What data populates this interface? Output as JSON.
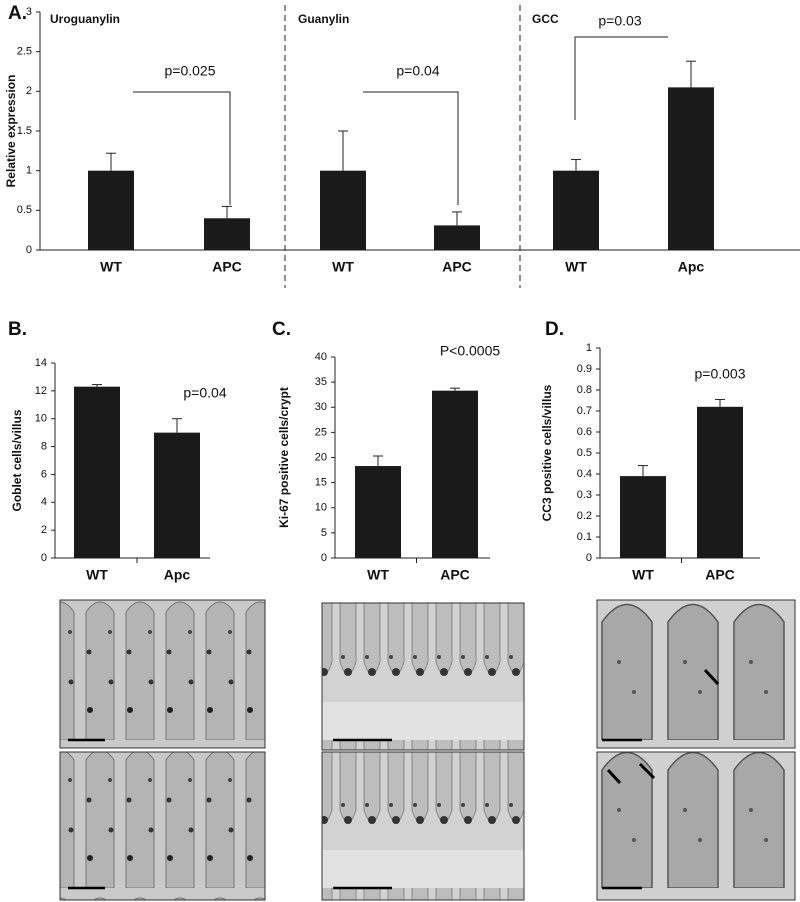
{
  "chart_data": [
    {
      "type": "grouped-bar",
      "panel": "A.",
      "ylabel": "Relative expression",
      "ylim": [
        0,
        3
      ],
      "yticks": [
        0,
        0.5,
        1,
        1.5,
        2,
        2.5,
        3
      ],
      "color": "#1a1a1a",
      "groups": [
        {
          "title": "Uroguanylin",
          "categories": [
            "WT",
            "APC"
          ],
          "values": [
            1.0,
            0.4
          ],
          "errors": [
            0.22,
            0.15
          ],
          "annotation": "p=0.025"
        },
        {
          "title": "Guanylin",
          "categories": [
            "WT",
            "APC"
          ],
          "values": [
            1.0,
            0.31
          ],
          "errors": [
            0.5,
            0.17
          ],
          "annotation": "p=0.04"
        },
        {
          "title": "GCC",
          "categories": [
            "WT",
            "Apc"
          ],
          "values": [
            1.0,
            2.05
          ],
          "errors": [
            0.14,
            0.33
          ],
          "annotation": "p=0.03"
        }
      ]
    },
    {
      "type": "bar",
      "panel": "B.",
      "ylabel": "Goblet cells/villus",
      "annotation": "p=0.04",
      "categories": [
        "WT",
        "Apc"
      ],
      "values": [
        12.3,
        9.0
      ],
      "errors": [
        0.15,
        1.0
      ],
      "ylim": [
        0,
        14
      ],
      "yticks": [
        0,
        2,
        4,
        6,
        8,
        10,
        12,
        14
      ],
      "color": "#1a1a1a"
    },
    {
      "type": "bar",
      "panel": "C.",
      "ylabel": "Ki-67 positive cells/crypt",
      "annotation": "P<0.0005",
      "categories": [
        "WT",
        "APC"
      ],
      "values": [
        18.3,
        33.3
      ],
      "errors": [
        2.0,
        0.5
      ],
      "ylim": [
        0,
        40
      ],
      "yticks": [
        0,
        5,
        10,
        15,
        20,
        25,
        30,
        35,
        40
      ],
      "color": "#1a1a1a"
    },
    {
      "type": "bar",
      "panel": "D.",
      "ylabel": "CC3 positive cells/villus",
      "annotation": "p=0.003",
      "categories": [
        "WT",
        "APC"
      ],
      "values": [
        0.39,
        0.72
      ],
      "errors": [
        0.05,
        0.035
      ],
      "ylim": [
        0,
        1
      ],
      "yticks": [
        0,
        0.1,
        0.2,
        0.3,
        0.4,
        0.5,
        0.6,
        0.7,
        0.8,
        0.9,
        1
      ],
      "color": "#1a1a1a"
    }
  ]
}
